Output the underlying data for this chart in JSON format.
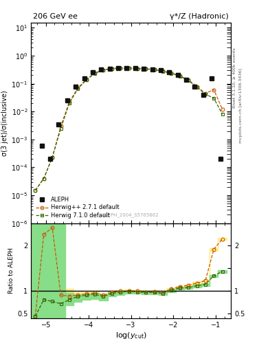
{
  "title_left": "206 GeV ee",
  "title_right": "γ*/Z (Hadronic)",
  "ylabel_main": "σ(3 jet)/σ(inclusive)",
  "ylabel_ratio": "Ratio to ALEPH",
  "xlabel": "log(y_{cut})",
  "watermark": "ALEPH_2004_S5765862",
  "right_label1": "Rivet 3.1.10, ≥ 400k events",
  "right_label2": "mcplots.cern.ch [arXiv:1306.3436]",
  "xlim": [
    -5.35,
    -0.65
  ],
  "ylim_main": [
    1e-06,
    15
  ],
  "ylim_ratio": [
    0.38,
    2.5
  ],
  "aleph_x": [
    -5.1,
    -4.9,
    -4.7,
    -4.5,
    -4.3,
    -4.1,
    -3.9,
    -3.7,
    -3.5,
    -3.3,
    -3.1,
    -2.9,
    -2.7,
    -2.5,
    -2.3,
    -2.1,
    -1.9,
    -1.7,
    -1.5,
    -1.3,
    -1.1,
    -0.9
  ],
  "aleph_y": [
    0.0006,
    0.0002,
    0.0035,
    0.025,
    0.08,
    0.15,
    0.25,
    0.32,
    0.35,
    0.36,
    0.36,
    0.355,
    0.35,
    0.33,
    0.3,
    0.25,
    0.2,
    0.14,
    0.08,
    0.04,
    0.15,
    0.0002
  ],
  "hw_x": [
    -5.25,
    -5.05,
    -4.85,
    -4.65,
    -4.45,
    -4.25,
    -4.05,
    -3.85,
    -3.65,
    -3.45,
    -3.25,
    -3.05,
    -2.85,
    -2.65,
    -2.45,
    -2.25,
    -2.05,
    -1.85,
    -1.65,
    -1.45,
    -1.25,
    -1.05,
    -0.85
  ],
  "hwpp_y": [
    1.5e-05,
    4e-05,
    0.00023,
    0.003,
    0.022,
    0.07,
    0.14,
    0.24,
    0.31,
    0.35,
    0.36,
    0.36,
    0.35,
    0.34,
    0.32,
    0.28,
    0.24,
    0.19,
    0.135,
    0.08,
    0.045,
    0.06,
    0.012
  ],
  "hw7_y": [
    1.5e-05,
    4e-05,
    0.00023,
    0.0025,
    0.02,
    0.065,
    0.135,
    0.235,
    0.305,
    0.345,
    0.355,
    0.355,
    0.345,
    0.335,
    0.315,
    0.275,
    0.235,
    0.185,
    0.13,
    0.075,
    0.042,
    0.03,
    0.008
  ],
  "hwpp_color": "#cc5500",
  "hw7_color": "#336600",
  "aleph_color": "#111111",
  "hwpp_band_color": "#ffee88",
  "hw7_band_color": "#88dd88",
  "ratio_hwpp_y": [
    0.43,
    2.25,
    2.4,
    0.9,
    0.88,
    0.9,
    0.93,
    0.95,
    0.9,
    0.96,
    0.99,
    1.0,
    0.99,
    0.97,
    0.98,
    0.95,
    1.04,
    1.09,
    1.12,
    1.17,
    1.22,
    1.92,
    2.15
  ],
  "ratio_hw7_y": [
    0.43,
    0.8,
    0.76,
    0.71,
    0.8,
    0.87,
    0.9,
    0.92,
    0.87,
    0.94,
    0.97,
    0.98,
    0.97,
    0.96,
    0.96,
    0.94,
    1.01,
    1.06,
    1.07,
    1.11,
    1.14,
    1.33,
    1.43
  ],
  "hwpp_band_xedges": [
    -5.35,
    -5.15,
    -4.95,
    -4.75,
    -4.55,
    -4.35,
    -4.15,
    -3.95,
    -3.75,
    -3.55,
    -3.35,
    -3.15,
    -2.95,
    -2.75,
    -2.55,
    -2.35,
    -2.15,
    -1.95,
    -1.75,
    -1.55,
    -1.35,
    -1.15,
    -0.95,
    -0.75
  ],
  "hwpp_band_hi": [
    2.5,
    2.5,
    2.5,
    2.5,
    1.05,
    0.97,
    0.97,
    0.98,
    0.93,
    0.98,
    1.01,
    1.02,
    1.01,
    0.99,
    1.0,
    0.97,
    1.06,
    1.11,
    1.14,
    1.19,
    1.24,
    1.94,
    2.17,
    2.5
  ],
  "hwpp_band_lo": [
    0.38,
    0.38,
    0.38,
    0.38,
    0.77,
    0.84,
    0.86,
    0.88,
    0.84,
    0.91,
    0.95,
    0.97,
    0.96,
    0.94,
    0.95,
    0.92,
    1.01,
    1.06,
    1.09,
    1.14,
    1.19,
    1.89,
    2.12,
    0.38
  ],
  "hw7_band_xedges": [
    -5.35,
    -5.15,
    -4.95,
    -4.75,
    -4.55,
    -4.35,
    -4.15,
    -3.95,
    -3.75,
    -3.55,
    -3.35,
    -3.15,
    -2.95,
    -2.75,
    -2.55,
    -2.35,
    -2.15,
    -1.95,
    -1.75,
    -1.55,
    -1.35,
    -1.15,
    -0.95,
    -0.75
  ],
  "hw7_band_hi": [
    2.5,
    2.5,
    2.5,
    2.5,
    0.95,
    0.92,
    0.92,
    0.95,
    0.9,
    0.97,
    0.99,
    1.0,
    1.0,
    0.98,
    0.98,
    0.96,
    1.03,
    1.08,
    1.09,
    1.13,
    1.16,
    1.35,
    1.45,
    2.5
  ],
  "hw7_band_lo": [
    0.38,
    0.38,
    0.38,
    0.38,
    0.67,
    0.75,
    0.8,
    0.82,
    0.78,
    0.87,
    0.91,
    0.93,
    0.93,
    0.92,
    0.92,
    0.9,
    0.97,
    1.02,
    1.04,
    1.08,
    1.11,
    1.3,
    1.4,
    0.38
  ]
}
